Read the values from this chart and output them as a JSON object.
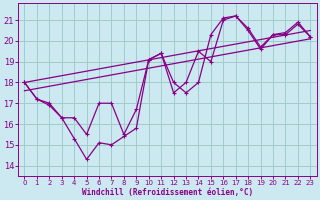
{
  "xlabel": "Windchill (Refroidissement éolien,°C)",
  "bg_color": "#cce8f0",
  "grid_color": "#a0ccc8",
  "line_color": "#880088",
  "xlim": [
    -0.5,
    23.5
  ],
  "ylim": [
    13.5,
    21.8
  ],
  "yticks": [
    14,
    15,
    16,
    17,
    18,
    19,
    20,
    21
  ],
  "xticks": [
    0,
    1,
    2,
    3,
    4,
    5,
    6,
    7,
    8,
    9,
    10,
    11,
    12,
    13,
    14,
    15,
    16,
    17,
    18,
    19,
    20,
    21,
    22,
    23
  ],
  "series1_x": [
    0,
    1,
    2,
    3,
    4,
    5,
    6,
    7,
    8,
    9,
    10,
    11,
    12,
    13,
    14,
    15,
    16,
    17,
    18,
    19,
    20,
    21,
    22,
    23
  ],
  "series1_y": [
    18.0,
    17.2,
    16.9,
    16.3,
    15.3,
    14.3,
    15.1,
    15.0,
    15.4,
    15.8,
    19.1,
    19.4,
    18.0,
    17.5,
    18.0,
    20.3,
    21.1,
    21.2,
    20.5,
    19.6,
    20.3,
    20.3,
    20.8,
    20.2
  ],
  "series2_x": [
    0,
    1,
    2,
    3,
    4,
    5,
    6,
    7,
    8,
    9,
    10,
    11,
    12,
    13,
    14,
    15,
    16,
    17,
    18,
    19,
    20,
    21,
    22,
    23
  ],
  "series2_y": [
    18.0,
    17.2,
    17.0,
    16.3,
    16.3,
    15.5,
    17.0,
    17.0,
    15.5,
    16.7,
    19.1,
    19.4,
    17.5,
    18.0,
    19.5,
    19.0,
    21.0,
    21.2,
    20.6,
    19.7,
    20.3,
    20.4,
    20.9,
    20.2
  ],
  "series3_x": [
    0,
    23
  ],
  "series3_y": [
    17.6,
    20.1
  ],
  "series4_x": [
    0,
    23
  ],
  "series4_y": [
    18.0,
    20.5
  ]
}
